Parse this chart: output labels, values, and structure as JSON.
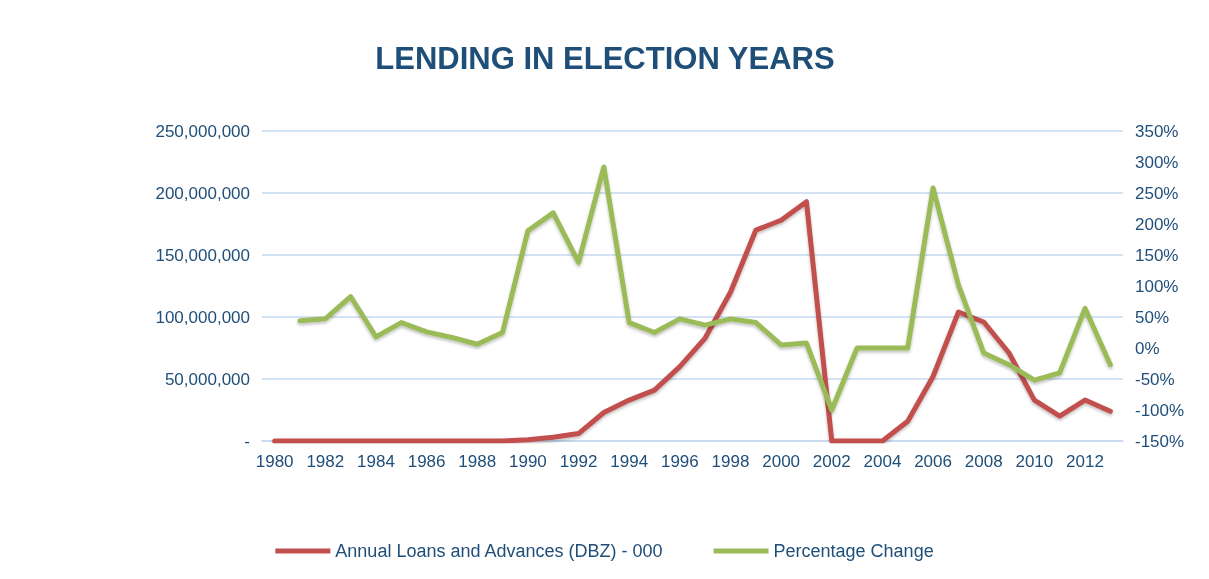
{
  "chart_data": {
    "type": "line",
    "title": "LENDING IN ELECTION YEARS",
    "categories": [
      "1980",
      null,
      "1982",
      null,
      "1984",
      null,
      "1986",
      null,
      "1988",
      null,
      "1990",
      null,
      "1992",
      null,
      "1994",
      null,
      "1996",
      null,
      "1998",
      null,
      "2000",
      null,
      "2002",
      null,
      "2004",
      null,
      "2006",
      null,
      "2008",
      null,
      "2010",
      null,
      "2012",
      null
    ],
    "series": [
      {
        "name": "Annual Loans and Advances (DBZ) - 000",
        "color": "#c0504d",
        "values": [
          0,
          0,
          0,
          0,
          0,
          0,
          0,
          0,
          0,
          0,
          1000000,
          3000000,
          6000000,
          23000000,
          33000000,
          41000000,
          60000000,
          83000000,
          120000000,
          170000000,
          178000000,
          193000000,
          0,
          0,
          0,
          16000000,
          52000000,
          104000000,
          96000000,
          71000000,
          33000000,
          20000000,
          33000000,
          24000000
        ]
      },
      {
        "name": "Percentage Change",
        "color": "#9bbb59",
        "axis": "y2",
        "values": [
          null,
          44,
          47,
          83,
          18,
          41,
          26,
          17,
          6,
          25,
          189,
          218,
          138,
          292,
          41,
          25,
          47,
          37,
          47,
          41,
          5,
          8,
          -100,
          0,
          0,
          0,
          258,
          102,
          -8,
          -27,
          -52,
          -40,
          64,
          -27
        ]
      }
    ],
    "ylim": [
      0,
      250000000
    ],
    "yticks": [
      {
        "value": 0,
        "label": "-"
      },
      {
        "value": 50000000,
        "label": "50,000,000"
      },
      {
        "value": 100000000,
        "label": "100,000,000"
      },
      {
        "value": 150000000,
        "label": "150,000,000"
      },
      {
        "value": 200000000,
        "label": "200,000,000"
      },
      {
        "value": 250000000,
        "label": "250,000,000"
      }
    ],
    "y2lim": [
      -150,
      350
    ],
    "y2ticks": [
      {
        "value": -150,
        "label": "-150%"
      },
      {
        "value": -100,
        "label": "-100%"
      },
      {
        "value": -50,
        "label": "-50%"
      },
      {
        "value": 0,
        "label": "0%"
      },
      {
        "value": 50,
        "label": "50%"
      },
      {
        "value": 100,
        "label": "100%"
      },
      {
        "value": 150,
        "label": "150%"
      },
      {
        "value": 200,
        "label": "200%"
      },
      {
        "value": 250,
        "label": "250%"
      },
      {
        "value": 300,
        "label": "300%"
      },
      {
        "value": 350,
        "label": "350%"
      }
    ],
    "grid": "y",
    "legend": "bottom",
    "marker": "none",
    "line_style": "solid"
  }
}
